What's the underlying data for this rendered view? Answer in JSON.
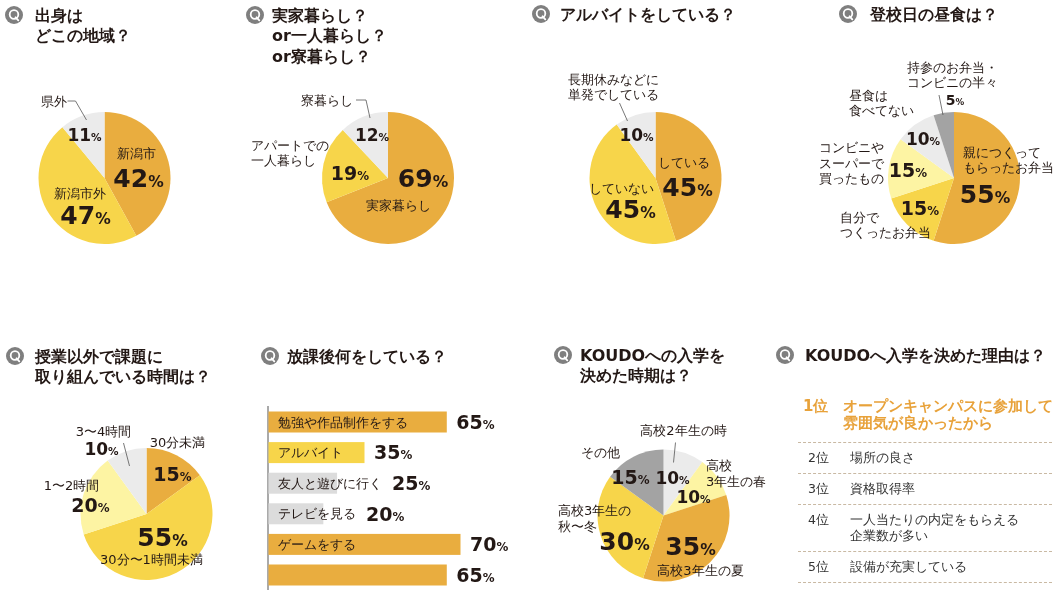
{
  "chart_data": [
    {
      "type": "pie",
      "title": "出身はどこの地域？",
      "categories": [
        "新潟市",
        "新潟市外",
        "県外"
      ],
      "values": [
        42,
        47,
        11
      ],
      "colors": [
        "#e9ad3f",
        "#f7d54a",
        "#ebebeb"
      ],
      "value_labels": [
        "42%",
        "47%",
        "11%"
      ]
    },
    {
      "type": "pie",
      "title": "実家暮らし？or一人暮らし？or寮暮らし？",
      "categories": [
        "実家暮らし",
        "アパートでの一人暮らし",
        "寮暮らし"
      ],
      "values": [
        69,
        19,
        12
      ],
      "colors": [
        "#e9ad3f",
        "#f7d54a",
        "#ebebeb"
      ],
      "value_labels": [
        "69%",
        "19%",
        "12%"
      ]
    },
    {
      "type": "pie",
      "title": "アルバイトをしている？",
      "categories": [
        "している",
        "していない",
        "長期休みなどに単発でしている"
      ],
      "values": [
        45,
        45,
        10
      ],
      "colors": [
        "#e9ad3f",
        "#f7d54a",
        "#ebebeb"
      ],
      "value_labels": [
        "45%",
        "45%",
        "10%"
      ]
    },
    {
      "type": "pie",
      "title": "登校日の昼食は？",
      "categories": [
        "親につくってもらったお弁当",
        "自分でつくったお弁当",
        "コンビニやスーパーで買ったもの",
        "昼食は食べてない",
        "持参のお弁当・コンビニの半々"
      ],
      "values": [
        55,
        15,
        15,
        10,
        5
      ],
      "colors": [
        "#e9ad3f",
        "#f7d54a",
        "#fdf4a3",
        "#ebebeb",
        "#a3a3a3"
      ],
      "value_labels": [
        "55%",
        "15%",
        "15%",
        "10%",
        "5%"
      ]
    },
    {
      "type": "pie",
      "title": "授業以外で課題に取り組んでいる時間は？",
      "categories": [
        "30分未満",
        "30分〜1時間未満",
        "1〜2時間",
        "3〜4時間"
      ],
      "values": [
        15,
        55,
        20,
        10
      ],
      "colors": [
        "#e9ad3f",
        "#f7d54a",
        "#fdf4a3",
        "#ebebeb"
      ],
      "value_labels": [
        "15%",
        "55%",
        "20%",
        "10%"
      ]
    },
    {
      "type": "bar",
      "orientation": "horizontal",
      "title": "放課後何をしている？",
      "categories": [
        "勉強や作品制作をする",
        "アルバイト",
        "友人と遊びに行く",
        "テレビを見る",
        "ゲームをする",
        null
      ],
      "values": [
        65,
        35,
        25,
        20,
        70,
        65
      ],
      "colors": [
        "#e9ad3f",
        "#f7d54a",
        "#dcdcdc",
        "#dcdcdc",
        "#e9ad3f",
        "#e9ad3f"
      ],
      "value_labels": [
        "65%",
        "35%",
        "25%",
        "20%",
        "70%",
        "65%"
      ]
    },
    {
      "type": "pie",
      "title": "KOUDOへの入学を決めた時期は？",
      "categories": [
        "高校2年生の時",
        "高校3年生の春",
        "高校3年生の夏",
        "高校3年生の秋〜冬",
        "その他"
      ],
      "values": [
        10,
        10,
        35,
        30,
        15
      ],
      "colors": [
        "#ebebeb",
        "#fdf4a3",
        "#e9ad3f",
        "#f7d54a",
        "#a3a3a3"
      ],
      "value_labels": [
        "10%",
        "10%",
        "35%",
        "30%",
        "15%"
      ]
    },
    {
      "type": "other",
      "title": "KOUDOへ入学を決めた理由は？",
      "annotations": [
        "1位",
        "オープンキャンパスに参加して雰囲気が良かったから",
        "2位",
        "場所の良さ",
        "3位",
        "資格取得率",
        "4位",
        "一人当たりの内定をもらえる企業数が多い",
        "5位",
        "設備が充実している"
      ]
    }
  ]
}
